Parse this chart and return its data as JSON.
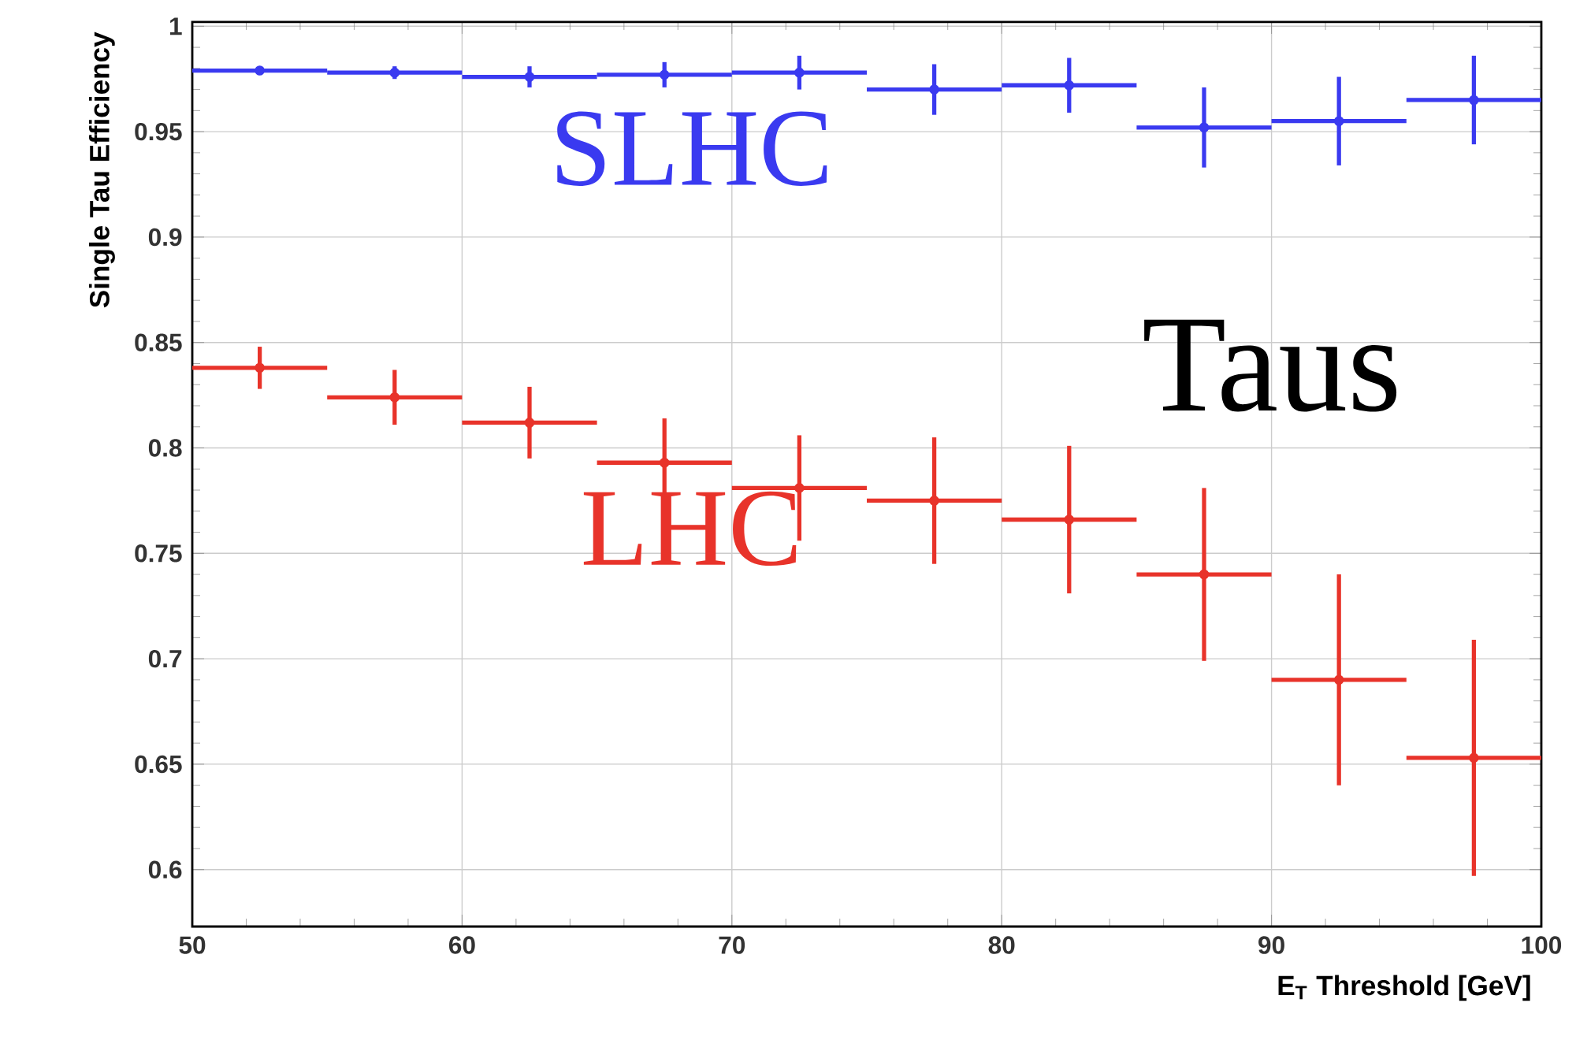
{
  "chart_data": {
    "type": "scatter",
    "xlabel": "E$_{T}$ Threshold [GeV]",
    "ylabel": "Single Tau Efficiency",
    "x": [
      52.5,
      57.5,
      62.5,
      67.5,
      72.5,
      77.5,
      82.5,
      87.5,
      92.5,
      97.5
    ],
    "series": [
      {
        "name": "SLHC",
        "color": "#3a3af0",
        "values": [
          0.979,
          0.978,
          0.976,
          0.977,
          0.978,
          0.97,
          0.972,
          0.952,
          0.955,
          0.965
        ],
        "errors": [
          0.002,
          0.003,
          0.005,
          0.006,
          0.008,
          0.012,
          0.013,
          0.019,
          0.021,
          0.021
        ],
        "xerrors": [
          2.5,
          2.5,
          2.5,
          2.5,
          2.5,
          2.5,
          2.5,
          2.5,
          2.5,
          2.5
        ]
      },
      {
        "name": "LHC",
        "color": "#e8332a",
        "values": [
          0.838,
          0.824,
          0.812,
          0.793,
          0.781,
          0.775,
          0.766,
          0.74,
          0.69,
          0.653
        ],
        "errors": [
          0.01,
          0.013,
          0.017,
          0.021,
          0.025,
          0.03,
          0.035,
          0.041,
          0.05,
          0.056
        ],
        "xerrors": [
          2.5,
          2.5,
          2.5,
          2.5,
          2.5,
          2.5,
          2.5,
          2.5,
          2.5,
          2.5
        ]
      }
    ],
    "annotations": [
      "Taus"
    ],
    "xlim": [
      50,
      100
    ],
    "xticks": [
      50,
      60,
      70,
      80,
      90,
      100
    ],
    "ylim": [
      0.573,
      1.002
    ],
    "yticks": [
      0.6,
      0.65,
      0.7,
      0.75,
      0.8,
      0.85,
      0.9,
      0.95,
      1
    ],
    "grid": true,
    "marker": "circle",
    "legend": false
  }
}
